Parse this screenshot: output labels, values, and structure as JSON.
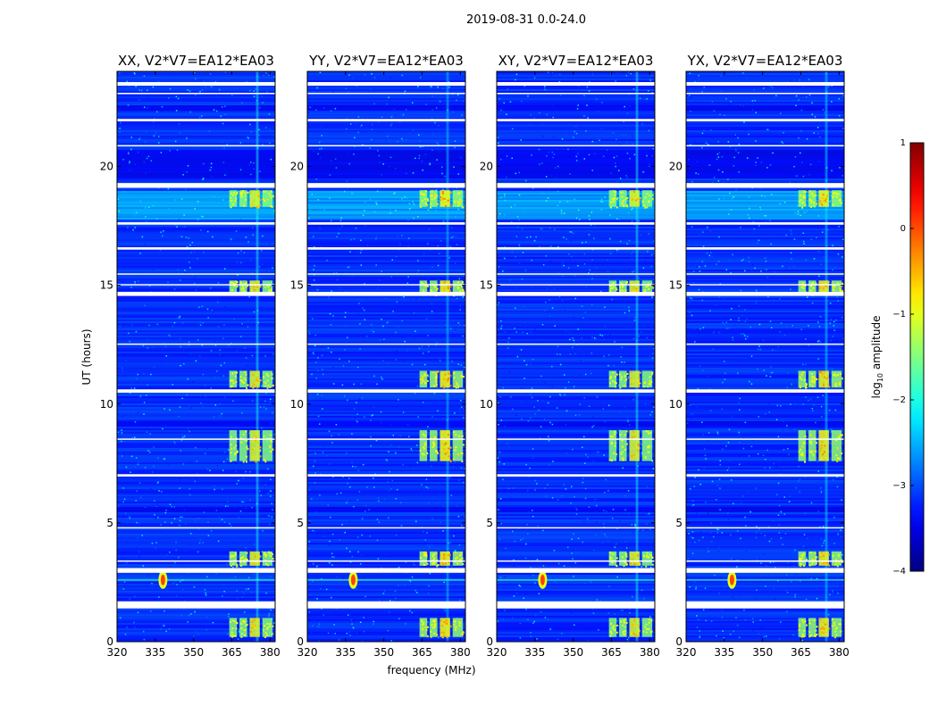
{
  "figure": {
    "suptitle": "2019-08-31 0.0-24.0",
    "xlabel": "frequency (MHz)",
    "ylabel": "UT (hours)"
  },
  "colorbar": {
    "label_prefix": "log",
    "label_sub": "10",
    "label_suffix": " amplitude",
    "ticks": [
      "1",
      "0",
      "−1",
      "−2",
      "−3",
      "−4"
    ],
    "range": [
      -4,
      1
    ],
    "colormap": "jet",
    "tick_values": [
      1,
      0,
      -1,
      -2,
      -3,
      -4
    ]
  },
  "colors": {
    "background": "#0a2df0",
    "gap": "#ffffff"
  },
  "chart_data": {
    "type": "heatmap",
    "title": "2019-08-31 0.0-24.0",
    "xlabel": "frequency (MHz)",
    "ylabel": "UT (hours)",
    "xlim": [
      320,
      382
    ],
    "ylim": [
      0,
      24
    ],
    "xticks": [
      320,
      335,
      350,
      365,
      380
    ],
    "xtick_labels": [
      "320",
      "335",
      "350",
      "365",
      "380"
    ],
    "yticks": [
      0,
      5,
      10,
      15,
      20
    ],
    "ytick_labels": [
      "0",
      "5",
      "10",
      "15",
      "20"
    ],
    "value_label": "log10 amplitude",
    "value_range": [
      -4,
      1
    ],
    "panels": [
      {
        "pol": "XX",
        "title": "XX, V2*V7=EA12*EA03",
        "show_ylabel": true,
        "show_xlabel": false,
        "rfi_strength": 0.85,
        "cw_strength": 1.0
      },
      {
        "pol": "YY",
        "title": "YY, V2*V7=EA12*EA03",
        "show_ylabel": false,
        "show_xlabel": true,
        "rfi_strength": 1.0,
        "cw_strength": 1.0
      },
      {
        "pol": "XY",
        "title": "XY, V2*V7=EA12*EA03",
        "show_ylabel": false,
        "show_xlabel": false,
        "rfi_strength": 0.85,
        "cw_strength": 0.95
      },
      {
        "pol": "YX",
        "title": "YX, V2*V7=EA12*EA03",
        "show_ylabel": false,
        "show_xlabel": false,
        "rfi_strength": 0.95,
        "cw_strength": 1.0
      }
    ],
    "flagged_time_hours": [
      [
        1.4,
        1.7
      ],
      [
        2.9,
        3.1
      ],
      [
        3.38,
        3.42
      ],
      [
        4.78,
        4.82
      ],
      [
        6.95,
        7.05
      ],
      [
        8.5,
        8.55
      ],
      [
        10.48,
        10.62
      ],
      [
        12.5,
        12.55
      ],
      [
        14.55,
        14.72
      ],
      [
        15.0,
        15.05
      ],
      [
        15.45,
        15.5
      ],
      [
        16.5,
        16.6
      ],
      [
        17.55,
        17.65
      ],
      [
        19.1,
        19.3
      ],
      [
        20.85,
        20.9
      ],
      [
        21.9,
        22.0
      ],
      [
        23.05,
        23.1
      ],
      [
        23.4,
        23.55
      ]
    ],
    "dark_time_hours": [
      [
        5.5,
        5.7
      ],
      [
        9.1,
        9.3
      ],
      [
        19.5,
        20.7
      ],
      [
        22.4,
        22.6
      ]
    ],
    "elevated_noise_hours": [
      [
        17.8,
        19.0
      ]
    ],
    "rfi_channels_mhz": [
      [
        364,
        367
      ],
      [
        368,
        371
      ],
      [
        372,
        376
      ],
      [
        377,
        381
      ]
    ],
    "rfi_time_hours": [
      [
        0.2,
        1.0
      ],
      [
        3.2,
        3.8
      ],
      [
        7.6,
        8.9
      ],
      [
        10.7,
        11.4
      ],
      [
        14.6,
        15.2
      ],
      [
        18.3,
        19.0
      ]
    ],
    "rfi_continuous_mhz": [
      374.5,
      375.5
    ],
    "cw_source": {
      "freq_mhz": 338,
      "time_hours": 2.6
    }
  }
}
